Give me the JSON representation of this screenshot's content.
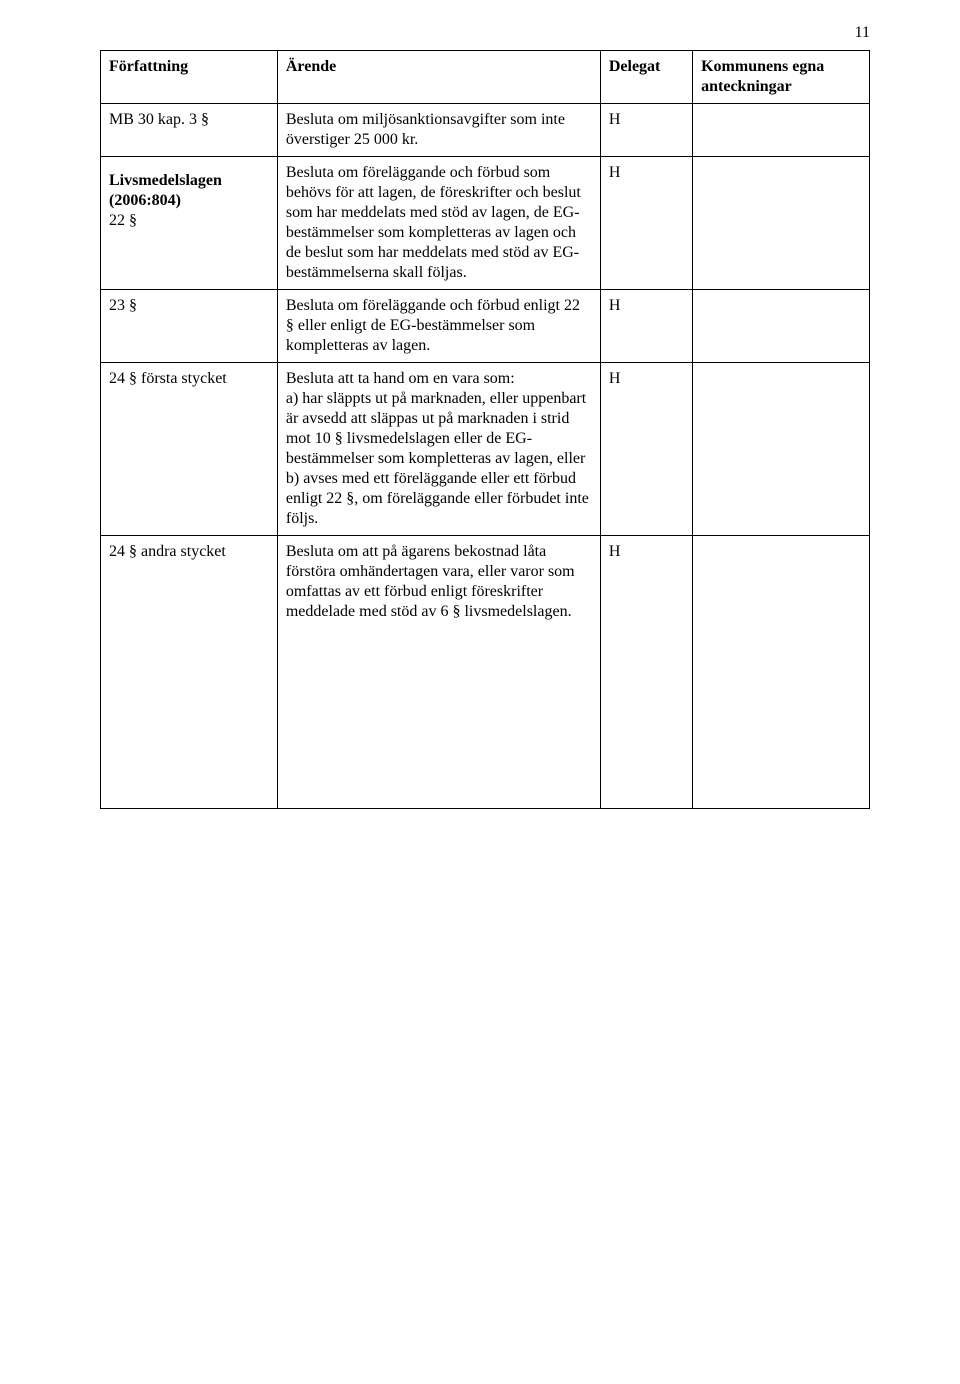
{
  "page_number": "11",
  "headers": {
    "col1": "Författning",
    "col2": "Ärende",
    "col3": "Delegat",
    "col4": "Kommunens egna anteckningar"
  },
  "rows": {
    "mb30": {
      "ref": "MB 30 kap. 3 §",
      "text": "Besluta om miljösanktionsavgifter som inte överstiger 25 000 kr.",
      "delegat": "H"
    },
    "livsmedel_header": {
      "title": "Livsmedelslagen (2006:804)",
      "ref": "22 §",
      "text": "Besluta om föreläggande och förbud som behövs för att lagen, de föreskrifter och beslut som har meddelats med stöd av lagen, de EG-bestämmelser som kompletteras av lagen och de beslut som har meddelats med stöd av EG-bestämmelserna skall följas.",
      "delegat": "H"
    },
    "p23": {
      "ref": "23 §",
      "text": "Besluta om föreläggande och förbud enligt 22 § eller enligt de EG-bestämmelser som kompletteras av lagen.",
      "delegat": "H"
    },
    "p24a": {
      "ref": "24 § första stycket",
      "text": "Besluta att ta hand om en vara som:\na) har släppts ut på marknaden, eller uppenbart är avsedd att släppas ut på marknaden i strid mot 10 § livsmedelslagen eller de EG-bestämmelser som kompletteras av lagen, eller\nb) avses med ett föreläggande eller ett förbud enligt 22 §, om föreläggande eller förbudet inte följs.",
      "delegat": "H"
    },
    "p24b": {
      "ref": "24 § andra stycket",
      "text": "Besluta om att på ägarens bekostnad låta förstöra omhändertagen vara, eller varor som omfattas av ett förbud enligt föreskrifter meddelade med stöd av 6 § livsmedelslagen.",
      "delegat": "H"
    }
  }
}
